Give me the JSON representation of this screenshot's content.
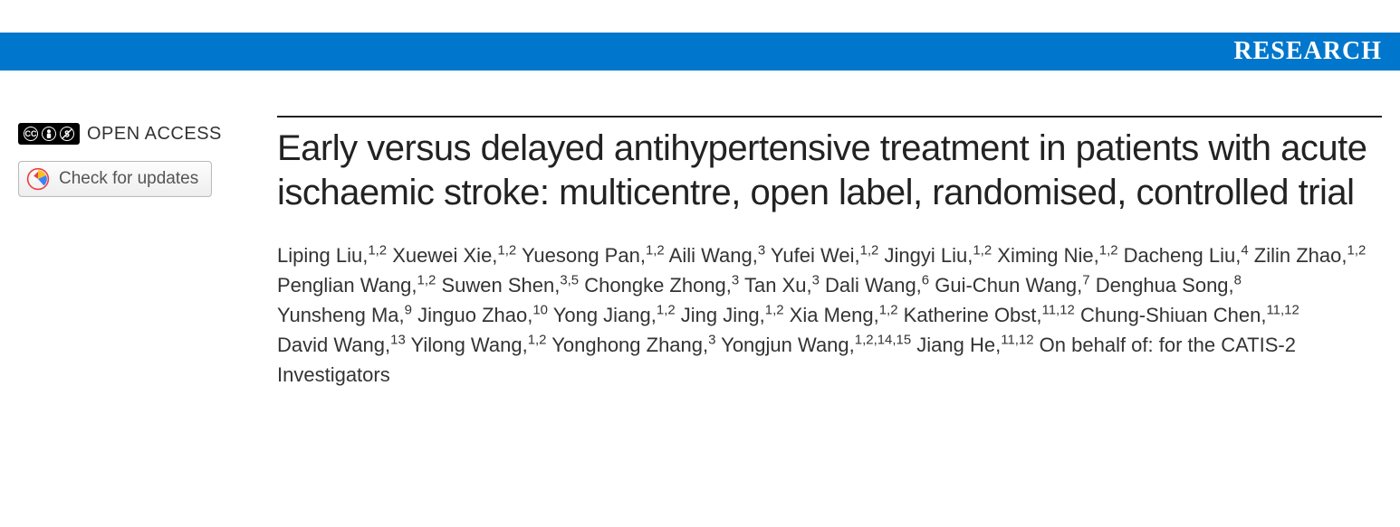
{
  "banner": {
    "label": "RESEARCH",
    "bg_color": "#0077cc",
    "text_color": "#ffffff"
  },
  "sidebar": {
    "open_access_label": "OPEN ACCESS",
    "cc_text": "CC",
    "updates_label": "Check for updates"
  },
  "article": {
    "title": "Early versus delayed antihypertensive treatment in patients with acute ischaemic stroke: multicentre, open label, randomised, controlled trial",
    "authors": [
      {
        "name": "Liping Liu",
        "aff": "1,2"
      },
      {
        "name": "Xuewei Xie",
        "aff": "1,2"
      },
      {
        "name": "Yuesong Pan",
        "aff": "1,2"
      },
      {
        "name": "Aili Wang",
        "aff": "3"
      },
      {
        "name": "Yufei Wei",
        "aff": "1,2"
      },
      {
        "name": "Jingyi Liu",
        "aff": "1,2"
      },
      {
        "name": "Ximing Nie",
        "aff": "1,2"
      },
      {
        "name": "Dacheng Liu",
        "aff": "4"
      },
      {
        "name": "Zilin Zhao",
        "aff": "1,2"
      },
      {
        "name": "Penglian Wang",
        "aff": "1,2"
      },
      {
        "name": "Suwen Shen",
        "aff": "3,5"
      },
      {
        "name": "Chongke Zhong",
        "aff": "3"
      },
      {
        "name": "Tan Xu",
        "aff": "3"
      },
      {
        "name": "Dali Wang",
        "aff": "6"
      },
      {
        "name": "Gui-Chun Wang",
        "aff": "7"
      },
      {
        "name": "Denghua Song",
        "aff": "8"
      },
      {
        "name": "Yunsheng Ma",
        "aff": "9"
      },
      {
        "name": "Jinguo Zhao",
        "aff": "10"
      },
      {
        "name": "Yong Jiang",
        "aff": "1,2"
      },
      {
        "name": "Jing Jing",
        "aff": "1,2"
      },
      {
        "name": "Xia Meng",
        "aff": "1,2"
      },
      {
        "name": "Katherine Obst",
        "aff": "11,12"
      },
      {
        "name": "Chung-Shiuan Chen",
        "aff": "11,12"
      },
      {
        "name": "David Wang",
        "aff": "13"
      },
      {
        "name": "Yilong Wang",
        "aff": "1,2"
      },
      {
        "name": "Yonghong Zhang",
        "aff": "3"
      },
      {
        "name": "Yongjun Wang",
        "aff": "1,2,14,15"
      },
      {
        "name": "Jiang He",
        "aff": "11,12"
      }
    ],
    "on_behalf": "On behalf of: for the CATIS-2 Investigators"
  },
  "colors": {
    "rule": "#222222",
    "text": "#333333",
    "button_border": "#bbbbbb"
  }
}
